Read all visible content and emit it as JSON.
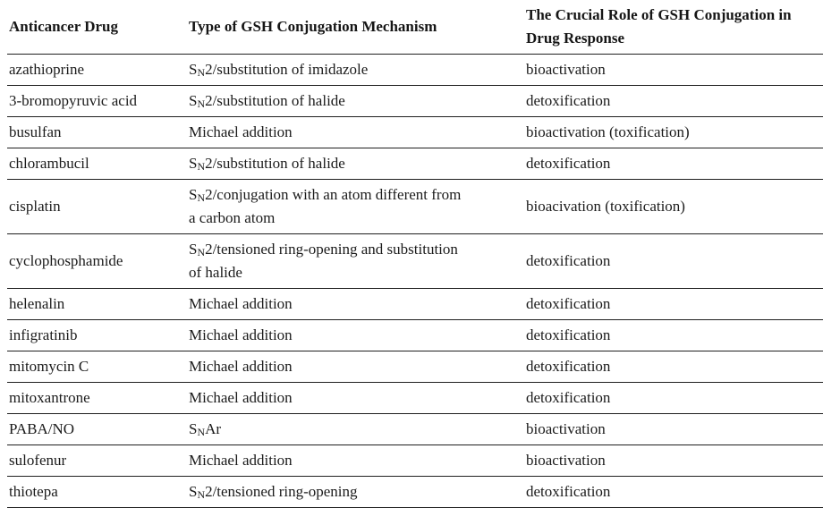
{
  "table": {
    "title_semantic": "Anticancer drugs and GSH conjugation",
    "columns": [
      {
        "label": "Anticancer Drug"
      },
      {
        "label": "Type of GSH Conjugation Mechanism"
      },
      {
        "label": "The Crucial Role of GSH Conjugation in\nDrug Response"
      }
    ],
    "subscript_note": "square brackets in mechanism strings denote subscript characters",
    "rows": [
      {
        "drug": "azathioprine",
        "mechanism": "S[N]2/substitution of imidazole",
        "role": "bioactivation"
      },
      {
        "drug": "3-bromopyruvic acid",
        "mechanism": "S[N]2/substitution of halide",
        "role": "detoxification"
      },
      {
        "drug": "busulfan",
        "mechanism": "Michael addition",
        "role": "bioactivation (toxification)"
      },
      {
        "drug": "chlorambucil",
        "mechanism": "S[N]2/substitution of halide",
        "role": "detoxification"
      },
      {
        "drug": "cisplatin",
        "mechanism": "S[N]2/conjugation with an atom different from\na carbon atom",
        "role": "bioacivation (toxification)"
      },
      {
        "drug": "cyclophosphamide",
        "mechanism": "S[N]2/tensioned ring-opening and substitution\nof halide",
        "role": "detoxification"
      },
      {
        "drug": "helenalin",
        "mechanism": "Michael addition",
        "role": "detoxification"
      },
      {
        "drug": "infigratinib",
        "mechanism": "Michael addition",
        "role": "detoxification"
      },
      {
        "drug": "mitomycin C",
        "mechanism": "Michael addition",
        "role": "detoxification"
      },
      {
        "drug": "mitoxantrone",
        "mechanism": "Michael addition",
        "role": "detoxification"
      },
      {
        "drug": "PABA/NO",
        "mechanism": "S[N]Ar",
        "role": "bioactivation"
      },
      {
        "drug": "sulofenur",
        "mechanism": "Michael addition",
        "role": "bioactivation"
      },
      {
        "drug": "thiotepa",
        "mechanism": "S[N]2/tensioned ring-opening",
        "role": "detoxification"
      }
    ],
    "colors": {
      "text": "#1b1b1b",
      "border": "#1f1f1f",
      "background": "#ffffff"
    }
  }
}
